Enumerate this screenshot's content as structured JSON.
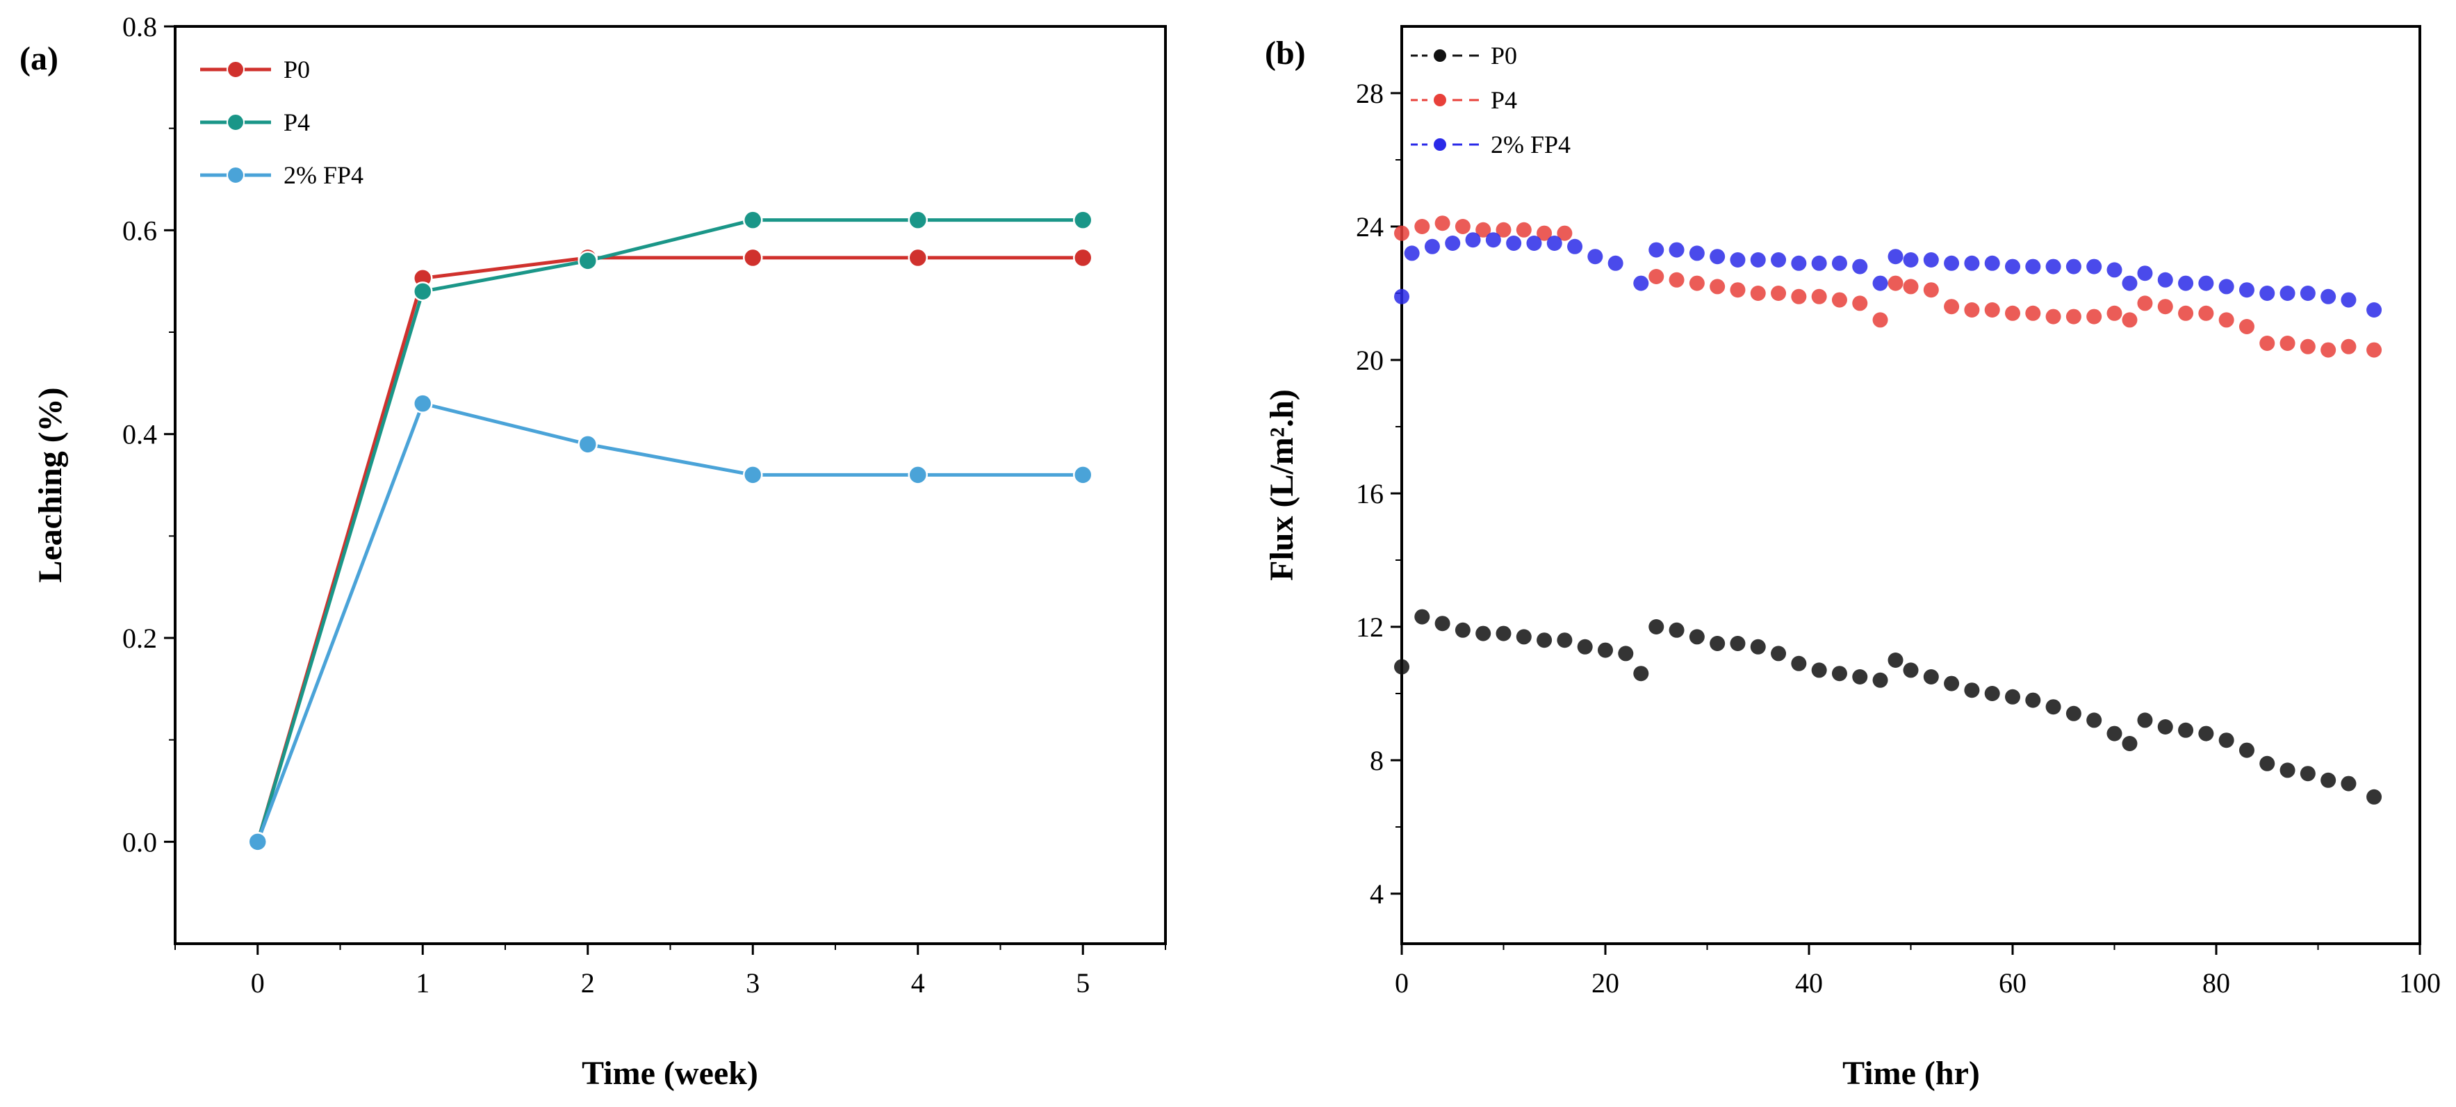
{
  "chart_data": [
    {
      "panel": "(a)",
      "type": "line",
      "xlabel": "Time (week)",
      "ylabel": "Leaching (%)",
      "xlim": [
        -0.5,
        5.5
      ],
      "ylim": [
        -0.1,
        0.8
      ],
      "xticks": [
        "0",
        "1",
        "2",
        "3",
        "4",
        "5"
      ],
      "yticks": [
        "0.0",
        "0.2",
        "0.4",
        "0.6",
        "0.8"
      ],
      "legend_position": "top-left",
      "grid": false,
      "x": [
        0,
        1,
        2,
        3,
        4,
        5
      ],
      "series": [
        {
          "name": "P0",
          "color": "#d0312d",
          "values": [
            0,
            0.553,
            0.573,
            0.573,
            0.573,
            0.573
          ]
        },
        {
          "name": "P4",
          "color": "#1a9688",
          "values": [
            0,
            0.54,
            0.57,
            0.61,
            0.61,
            0.61
          ]
        },
        {
          "name": "2% FP4",
          "color": "#4aa3d8",
          "values": [
            0,
            0.43,
            0.39,
            0.36,
            0.36,
            0.36
          ]
        }
      ]
    },
    {
      "panel": "(b)",
      "type": "scatter",
      "xlabel": "Time (hr)",
      "ylabel": "Flux (L/m².h)",
      "xlim": [
        0,
        100
      ],
      "ylim": [
        2.5,
        30
      ],
      "xticks": [
        "0",
        "20",
        "40",
        "60",
        "80",
        "100"
      ],
      "yticks": [
        "4",
        "8",
        "12",
        "16",
        "20",
        "24",
        "28"
      ],
      "legend_position": "top-left",
      "grid": false,
      "series": [
        {
          "name": "P0",
          "color": "#111111",
          "x": [
            0,
            2,
            4,
            6,
            8,
            10,
            12,
            14,
            16,
            18,
            20,
            22,
            23.5,
            25,
            27,
            29,
            31,
            33,
            35,
            37,
            39,
            41,
            43,
            45,
            47,
            48.5,
            50,
            52,
            54,
            56,
            58,
            60,
            62,
            64,
            66,
            68,
            70,
            71.5,
            73,
            75,
            77,
            79,
            81,
            83,
            85,
            87,
            89,
            91,
            93,
            95.5
          ],
          "values": [
            10.8,
            12.3,
            12.1,
            11.9,
            11.8,
            11.8,
            11.7,
            11.6,
            11.6,
            11.4,
            11.3,
            11.2,
            10.6,
            12.0,
            11.9,
            11.7,
            11.5,
            11.5,
            11.4,
            11.2,
            10.9,
            10.7,
            10.6,
            10.5,
            10.4,
            11.0,
            10.7,
            10.5,
            10.3,
            10.1,
            10.0,
            9.9,
            9.8,
            9.6,
            9.4,
            9.2,
            8.8,
            8.5,
            9.2,
            9.0,
            8.9,
            8.8,
            8.6,
            8.3,
            7.9,
            7.7,
            7.6,
            7.4,
            7.3,
            6.9
          ]
        },
        {
          "name": "P4",
          "color": "#e8403a",
          "x": [
            0,
            2,
            4,
            6,
            8,
            10,
            12,
            14,
            16,
            25,
            27,
            29,
            31,
            33,
            35,
            37,
            39,
            41,
            43,
            45,
            47,
            48.5,
            50,
            52,
            54,
            56,
            58,
            60,
            62,
            64,
            66,
            68,
            70,
            71.5,
            73,
            75,
            77,
            79,
            81,
            83,
            85,
            87,
            89,
            91,
            93,
            95.5
          ],
          "values": [
            23.8,
            24.0,
            24.1,
            24.0,
            23.9,
            23.9,
            23.9,
            23.8,
            23.8,
            22.5,
            22.4,
            22.3,
            22.2,
            22.1,
            22.0,
            22.0,
            21.9,
            21.9,
            21.8,
            21.7,
            21.2,
            22.3,
            22.2,
            22.1,
            21.6,
            21.5,
            21.5,
            21.4,
            21.4,
            21.3,
            21.3,
            21.3,
            21.4,
            21.2,
            21.7,
            21.6,
            21.4,
            21.4,
            21.2,
            21.0,
            20.5,
            20.5,
            20.4,
            20.3,
            20.4,
            20.3
          ]
        },
        {
          "name": "2% FP4",
          "color": "#2a2ae8",
          "x": [
            0,
            1,
            3,
            5,
            7,
            9,
            11,
            13,
            15,
            17,
            19,
            21,
            23.5,
            25,
            27,
            29,
            31,
            33,
            35,
            37,
            39,
            41,
            43,
            45,
            47,
            48.5,
            50,
            52,
            54,
            56,
            58,
            60,
            62,
            64,
            66,
            68,
            70,
            71.5,
            73,
            75,
            77,
            79,
            81,
            83,
            85,
            87,
            89,
            91,
            93,
            95.5
          ],
          "values": [
            21.9,
            23.2,
            23.4,
            23.5,
            23.6,
            23.6,
            23.5,
            23.5,
            23.5,
            23.4,
            23.1,
            22.9,
            22.3,
            23.3,
            23.3,
            23.2,
            23.1,
            23.0,
            23.0,
            23.0,
            22.9,
            22.9,
            22.9,
            22.8,
            22.3,
            23.1,
            23.0,
            23.0,
            22.9,
            22.9,
            22.9,
            22.8,
            22.8,
            22.8,
            22.8,
            22.8,
            22.7,
            22.3,
            22.6,
            22.4,
            22.3,
            22.3,
            22.2,
            22.1,
            22.0,
            22.0,
            22.0,
            21.9,
            21.8,
            21.5
          ]
        }
      ]
    }
  ]
}
